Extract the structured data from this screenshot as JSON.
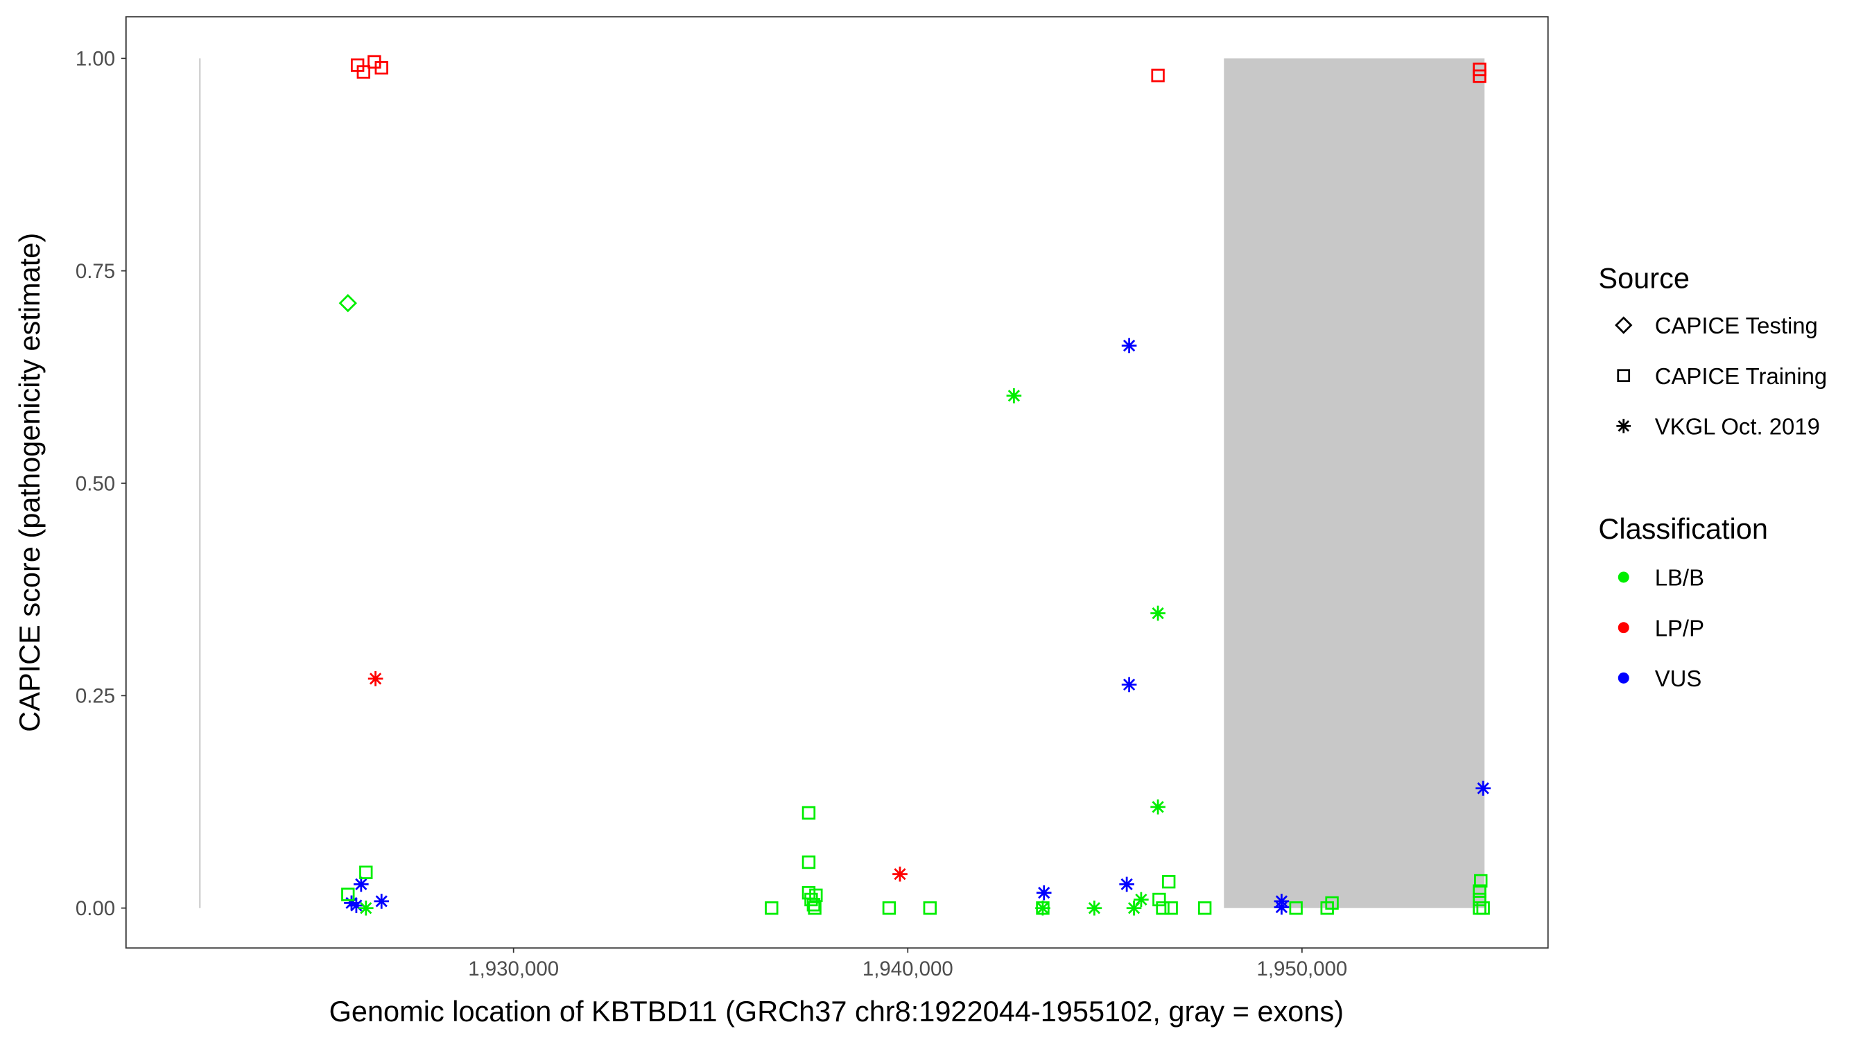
{
  "chart_data": {
    "type": "scatter",
    "xlabel": "Genomic location of KBTBD11 (GRCh37 chr8:1922044-1955102, gray = exons)",
    "ylabel": "CAPICE score (pathogenicity estimate)",
    "xlim": [
      1920170,
      1956240
    ],
    "ylim": [
      -0.047,
      1.049
    ],
    "x_ticks": [
      1930000,
      1940000,
      1950000
    ],
    "x_tick_labels": [
      "1,930,000",
      "1,940,000",
      "1,950,000"
    ],
    "y_ticks": [
      0,
      0.25,
      0.5,
      0.75,
      1.0
    ],
    "y_tick_labels": [
      "0.00",
      "0.25",
      "0.50",
      "0.75",
      "1.00"
    ],
    "grid": false,
    "gene_start_line": {
      "x": 1922044,
      "y": [
        0,
        1
      ],
      "color": "#c8c8c8"
    },
    "exons": [
      {
        "start": 1948020,
        "end": 1954630,
        "y": [
          0,
          1
        ],
        "color": "#c8c8c8"
      }
    ],
    "legend_placement": "right",
    "legend": {
      "source_title": "Source",
      "source_items": [
        {
          "label": "CAPICE Testing",
          "shape": "diamond"
        },
        {
          "label": "CAPICE Training",
          "shape": "square"
        },
        {
          "label": "VKGL Oct. 2019",
          "shape": "asterisk"
        }
      ],
      "class_title": "Classification",
      "class_items": [
        {
          "label": "LB/B",
          "color": "#00ee00"
        },
        {
          "label": "LP/P",
          "color": "#ff0000"
        },
        {
          "label": "VUS",
          "color": "#0000ff"
        }
      ]
    },
    "points": [
      {
        "x": 1926043,
        "y": 0.992,
        "source": "CAPICE Training",
        "class": "LP/P"
      },
      {
        "x": 1926195,
        "y": 0.984,
        "source": "CAPICE Training",
        "class": "LP/P"
      },
      {
        "x": 1926469,
        "y": 0.996,
        "source": "CAPICE Training",
        "class": "LP/P"
      },
      {
        "x": 1926651,
        "y": 0.989,
        "source": "CAPICE Training",
        "class": "LP/P"
      },
      {
        "x": 1946346,
        "y": 0.98,
        "source": "CAPICE Training",
        "class": "LP/P"
      },
      {
        "x": 1954504,
        "y": 0.987,
        "source": "CAPICE Training",
        "class": "LP/P"
      },
      {
        "x": 1954504,
        "y": 0.979,
        "source": "CAPICE Training",
        "class": "LP/P"
      },
      {
        "x": 1925799,
        "y": 0.712,
        "source": "CAPICE Testing",
        "class": "LB/B"
      },
      {
        "x": 1926499,
        "y": 0.27,
        "source": "VKGL Oct. 2019",
        "class": "LP/P"
      },
      {
        "x": 1939802,
        "y": 0.04,
        "source": "VKGL Oct. 2019",
        "class": "LP/P"
      },
      {
        "x": 1945616,
        "y": 0.662,
        "source": "VKGL Oct. 2019",
        "class": "VUS"
      },
      {
        "x": 1945616,
        "y": 0.263,
        "source": "VKGL Oct. 2019",
        "class": "VUS"
      },
      {
        "x": 1954595,
        "y": 0.141,
        "source": "VKGL Oct. 2019",
        "class": "VUS"
      },
      {
        "x": 1943455,
        "y": 0.018,
        "source": "VKGL Oct. 2019",
        "class": "VUS"
      },
      {
        "x": 1945555,
        "y": 0.028,
        "source": "VKGL Oct. 2019",
        "class": "VUS"
      },
      {
        "x": 1926134,
        "y": 0.028,
        "source": "VKGL Oct. 2019",
        "class": "VUS"
      },
      {
        "x": 1925890,
        "y": 0.006,
        "source": "VKGL Oct. 2019",
        "class": "VUS"
      },
      {
        "x": 1926012,
        "y": 0.003,
        "source": "VKGL Oct. 2019",
        "class": "VUS"
      },
      {
        "x": 1926651,
        "y": 0.008,
        "source": "VKGL Oct. 2019",
        "class": "VUS"
      },
      {
        "x": 1949482,
        "y": 0.008,
        "source": "VKGL Oct. 2019",
        "class": "VUS"
      },
      {
        "x": 1949482,
        "y": 0.001,
        "source": "VKGL Oct. 2019",
        "class": "VUS"
      },
      {
        "x": 1942693,
        "y": 0.603,
        "source": "VKGL Oct. 2019",
        "class": "LB/B"
      },
      {
        "x": 1946346,
        "y": 0.347,
        "source": "VKGL Oct. 2019",
        "class": "LB/B"
      },
      {
        "x": 1946346,
        "y": 0.119,
        "source": "VKGL Oct. 2019",
        "class": "LB/B"
      },
      {
        "x": 1926256,
        "y": 0.0,
        "source": "VKGL Oct. 2019",
        "class": "LB/B"
      },
      {
        "x": 1943424,
        "y": 0.0,
        "source": "VKGL Oct. 2019",
        "class": "LB/B"
      },
      {
        "x": 1944733,
        "y": 0.0,
        "source": "VKGL Oct. 2019",
        "class": "LB/B"
      },
      {
        "x": 1945738,
        "y": 0.0,
        "source": "VKGL Oct. 2019",
        "class": "LB/B"
      },
      {
        "x": 1945920,
        "y": 0.01,
        "source": "VKGL Oct. 2019",
        "class": "LB/B"
      },
      {
        "x": 1925799,
        "y": 0.016,
        "source": "CAPICE Training",
        "class": "LB/B"
      },
      {
        "x": 1926256,
        "y": 0.042,
        "source": "CAPICE Training",
        "class": "LB/B"
      },
      {
        "x": 1937488,
        "y": 0.112,
        "source": "CAPICE Training",
        "class": "LB/B"
      },
      {
        "x": 1937488,
        "y": 0.054,
        "source": "CAPICE Training",
        "class": "LB/B"
      },
      {
        "x": 1937488,
        "y": 0.018,
        "source": "CAPICE Training",
        "class": "LB/B"
      },
      {
        "x": 1937549,
        "y": 0.01,
        "source": "CAPICE Training",
        "class": "LB/B"
      },
      {
        "x": 1937610,
        "y": 0.004,
        "source": "CAPICE Training",
        "class": "LB/B"
      },
      {
        "x": 1937671,
        "y": 0.015,
        "source": "CAPICE Training",
        "class": "LB/B"
      },
      {
        "x": 1937640,
        "y": 0.0,
        "source": "CAPICE Training",
        "class": "LB/B"
      },
      {
        "x": 1936545,
        "y": 0.0,
        "source": "CAPICE Training",
        "class": "LB/B"
      },
      {
        "x": 1939528,
        "y": 0.0,
        "source": "CAPICE Training",
        "class": "LB/B"
      },
      {
        "x": 1940563,
        "y": 0.0,
        "source": "CAPICE Training",
        "class": "LB/B"
      },
      {
        "x": 1943424,
        "y": 0.0,
        "source": "CAPICE Training",
        "class": "LB/B"
      },
      {
        "x": 1946620,
        "y": 0.031,
        "source": "CAPICE Training",
        "class": "LB/B"
      },
      {
        "x": 1946377,
        "y": 0.01,
        "source": "CAPICE Training",
        "class": "LB/B"
      },
      {
        "x": 1946468,
        "y": 0.0,
        "source": "CAPICE Training",
        "class": "LB/B"
      },
      {
        "x": 1946681,
        "y": 0.0,
        "source": "CAPICE Training",
        "class": "LB/B"
      },
      {
        "x": 1947534,
        "y": 0.0,
        "source": "CAPICE Training",
        "class": "LB/B"
      },
      {
        "x": 1949847,
        "y": 0.0,
        "source": "CAPICE Training",
        "class": "LB/B"
      },
      {
        "x": 1950639,
        "y": 0.0,
        "source": "CAPICE Training",
        "class": "LB/B"
      },
      {
        "x": 1950760,
        "y": 0.006,
        "source": "CAPICE Training",
        "class": "LB/B"
      },
      {
        "x": 1954535,
        "y": 0.032,
        "source": "CAPICE Training",
        "class": "LB/B"
      },
      {
        "x": 1954504,
        "y": 0.02,
        "source": "CAPICE Training",
        "class": "LB/B"
      },
      {
        "x": 1954504,
        "y": 0.01,
        "source": "CAPICE Training",
        "class": "LB/B"
      },
      {
        "x": 1954504,
        "y": 0.0,
        "source": "CAPICE Training",
        "class": "LB/B"
      },
      {
        "x": 1954595,
        "y": 0.0,
        "source": "CAPICE Training",
        "class": "LB/B"
      }
    ]
  }
}
